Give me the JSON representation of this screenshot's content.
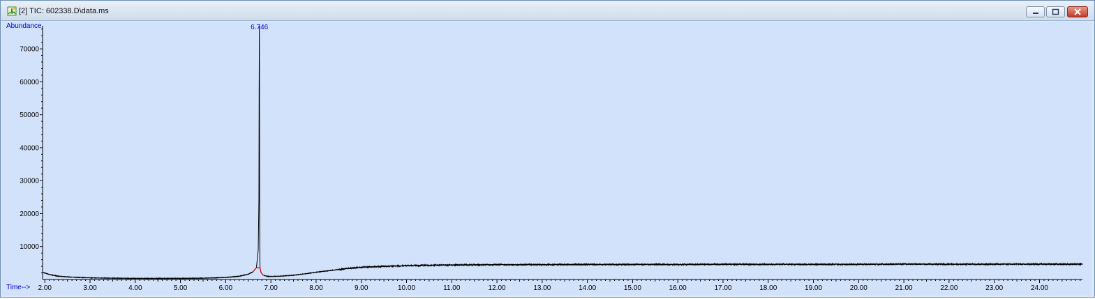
{
  "window": {
    "title": "[2] TIC: 602338.D\\data.ms",
    "icons": {
      "app": "chromatogram-app-icon",
      "minimize": "minimize-icon",
      "maximize": "maximize-icon",
      "close": "close-icon"
    }
  },
  "chart_data": {
    "type": "line",
    "title": "",
    "xlabel": "Time-->",
    "ylabel": "Abundance",
    "xlim": [
      1.95,
      24.95
    ],
    "ylim": [
      0,
      77000
    ],
    "x_ticks": [
      2,
      3,
      4,
      5,
      6,
      7,
      8,
      9,
      10,
      11,
      12,
      13,
      14,
      15,
      16,
      17,
      18,
      19,
      20,
      21,
      22,
      23,
      24
    ],
    "x_tick_labels": [
      "2.00",
      "3.00",
      "4.00",
      "5.00",
      "6.00",
      "7.00",
      "8.00",
      "9.00",
      "10.00",
      "11.00",
      "12.00",
      "13.00",
      "14.00",
      "15.00",
      "16.00",
      "17.00",
      "18.00",
      "19.00",
      "20.00",
      "21.00",
      "22.00",
      "23.00",
      "24.00"
    ],
    "y_ticks": [
      10000,
      20000,
      30000,
      40000,
      50000,
      60000,
      70000
    ],
    "y_tick_labels": [
      "10000",
      "20000",
      "30000",
      "40000",
      "50000",
      "60000",
      "70000"
    ],
    "grid": false,
    "series": [
      {
        "color": "#000000",
        "x": [
          1.95,
          2.1,
          2.3,
          2.6,
          3.0,
          3.5,
          4.0,
          4.5,
          5.0,
          5.5,
          6.0,
          6.3,
          6.5,
          6.6,
          6.68,
          6.72,
          6.735,
          6.74,
          6.746,
          6.75,
          6.755,
          6.76,
          6.78,
          6.82,
          6.9,
          7.0,
          7.2,
          7.5,
          7.8,
          8.0,
          8.3,
          8.6,
          9.0,
          9.5,
          10.0,
          11.0,
          12.0,
          13.0,
          14.0,
          15.0,
          16.0,
          17.0,
          18.0,
          19.0,
          20.0,
          21.0,
          22.0,
          23.0,
          24.0,
          24.95
        ],
        "y": [
          2200,
          1500,
          1000,
          700,
          500,
          400,
          350,
          330,
          350,
          400,
          600,
          1000,
          1600,
          2300,
          3600,
          9000,
          24000,
          57000,
          77000,
          24000,
          6000,
          3500,
          2200,
          1400,
          1000,
          900,
          1000,
          1300,
          1800,
          2200,
          2700,
          3200,
          3700,
          4000,
          4200,
          4400,
          4500,
          4500,
          4550,
          4550,
          4550,
          4600,
          4600,
          4600,
          4600,
          4650,
          4650,
          4650,
          4650,
          4650
        ]
      }
    ],
    "baseline_highlight": {
      "color": "#cc0000",
      "x_start": 6.6,
      "x_end": 6.85
    },
    "annotations": [
      {
        "x": 6.746,
        "label": "6.746",
        "color": "#0000cc"
      }
    ]
  }
}
